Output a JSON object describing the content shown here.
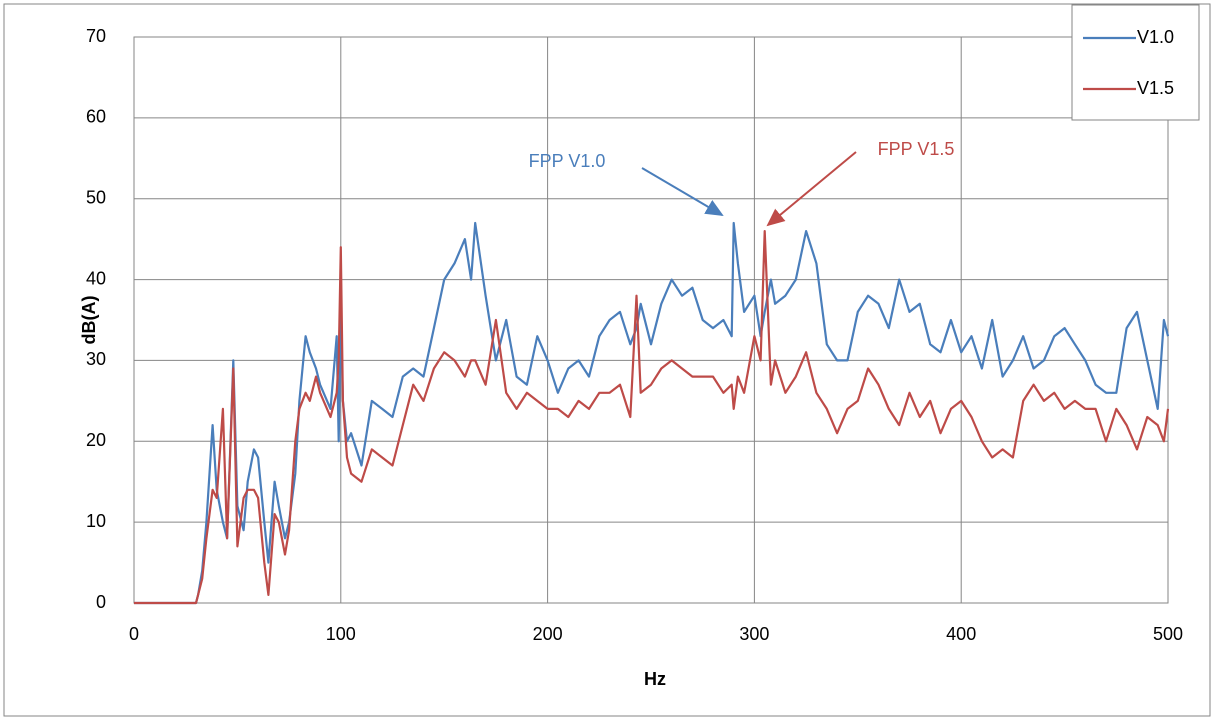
{
  "chart_data": {
    "type": "line",
    "xlabel": "Hz",
    "ylabel": "dB(A)",
    "x": [
      0,
      30,
      31,
      33,
      35,
      38,
      40,
      43,
      45,
      48,
      50,
      53,
      55,
      58,
      60,
      63,
      65,
      68,
      70,
      73,
      75,
      78,
      80,
      83,
      85,
      88,
      90,
      95,
      98,
      99,
      100,
      101,
      103,
      105,
      110,
      115,
      120,
      125,
      130,
      135,
      140,
      145,
      150,
      155,
      160,
      163,
      165,
      170,
      175,
      180,
      185,
      190,
      195,
      200,
      205,
      210,
      215,
      220,
      225,
      230,
      235,
      240,
      243,
      245,
      250,
      255,
      260,
      265,
      270,
      275,
      280,
      285,
      289,
      290,
      292,
      295,
      300,
      303,
      305,
      308,
      310,
      315,
      320,
      325,
      330,
      335,
      340,
      345,
      350,
      355,
      360,
      365,
      370,
      375,
      380,
      385,
      390,
      395,
      400,
      405,
      410,
      415,
      420,
      425,
      430,
      435,
      440,
      445,
      450,
      455,
      460,
      465,
      470,
      475,
      480,
      485,
      490,
      495,
      498,
      500
    ],
    "series": [
      {
        "name": "V1.0",
        "color": "#4a7ebb",
        "values": [
          0,
          0,
          1,
          4,
          10,
          22,
          14,
          10,
          8,
          30,
          12,
          9,
          15,
          19,
          18,
          10,
          5,
          15,
          12,
          8,
          10,
          16,
          25,
          33,
          31,
          29,
          27,
          24,
          33,
          20,
          36,
          25,
          20,
          21,
          17,
          25,
          24,
          23,
          28,
          29,
          28,
          34,
          40,
          42,
          45,
          40,
          47,
          38,
          30,
          35,
          28,
          27,
          33,
          30,
          26,
          29,
          30,
          28,
          33,
          35,
          36,
          32,
          34,
          37,
          32,
          37,
          40,
          38,
          39,
          35,
          34,
          35,
          33,
          47,
          42,
          36,
          38,
          33,
          36,
          40,
          37,
          38,
          40,
          46,
          42,
          32,
          30,
          30,
          36,
          38,
          37,
          34,
          40,
          36,
          37,
          32,
          31,
          35,
          31,
          33,
          29,
          35,
          28,
          30,
          33,
          29,
          30,
          33,
          34,
          32,
          30,
          27,
          26,
          26,
          34,
          36,
          30,
          24,
          35,
          33
        ]
      },
      {
        "name": "V1.5",
        "color": "#be4b48",
        "values": [
          0,
          0,
          1,
          3,
          8,
          14,
          13,
          24,
          8,
          29,
          7,
          13,
          14,
          14,
          13,
          5,
          1,
          11,
          10,
          6,
          9,
          20,
          24,
          26,
          25,
          28,
          26,
          23,
          26,
          30,
          44,
          25,
          18,
          16,
          15,
          19,
          18,
          17,
          22,
          27,
          25,
          29,
          31,
          30,
          28,
          30,
          30,
          27,
          35,
          26,
          24,
          26,
          25,
          24,
          24,
          23,
          25,
          24,
          26,
          26,
          27,
          23,
          38,
          26,
          27,
          29,
          30,
          29,
          28,
          28,
          28,
          26,
          27,
          24,
          28,
          26,
          33,
          30,
          46,
          27,
          30,
          26,
          28,
          31,
          26,
          24,
          21,
          24,
          25,
          29,
          27,
          24,
          22,
          26,
          23,
          25,
          21,
          24,
          25,
          23,
          20,
          18,
          19,
          18,
          25,
          27,
          25,
          26,
          24,
          25,
          24,
          24,
          20,
          24,
          22,
          19,
          23,
          22,
          20,
          24
        ]
      }
    ],
    "annotations": [
      {
        "text": "FPP V1.0",
        "color": "#4a7ebb"
      },
      {
        "text": "FPP V1.5",
        "color": "#be4b48"
      }
    ],
    "xlim": [
      0,
      500
    ],
    "xticks": [
      0,
      100,
      200,
      300,
      400,
      500
    ],
    "ylim": [
      0,
      70
    ],
    "yticks": [
      0,
      10,
      20,
      30,
      40,
      50,
      60,
      70
    ],
    "grid": true,
    "legend": "upper right"
  }
}
